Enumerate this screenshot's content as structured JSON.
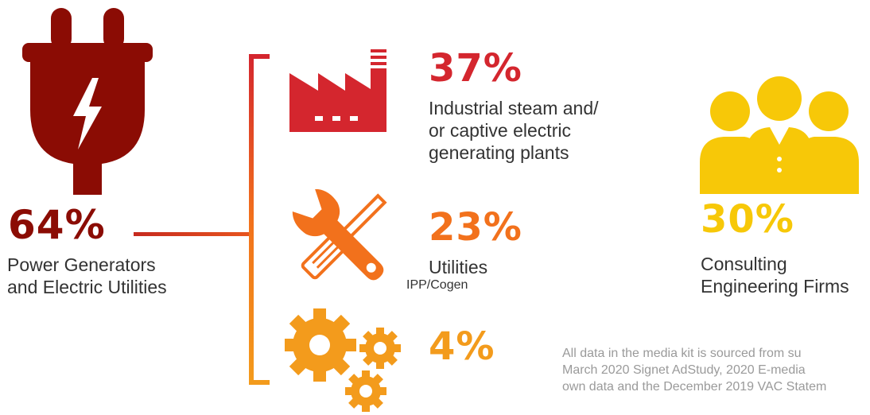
{
  "power": {
    "icon": "power-plug-icon",
    "value": "64%",
    "label_line1": "Power Generators",
    "label_line2": "and Electric Utilities",
    "color": "#8b0c04"
  },
  "segments": [
    {
      "icon": "factory-icon",
      "value": "37%",
      "label_line1": "Industrial steam and/",
      "label_line2": "or captive electric",
      "label_line3": "generating plants",
      "color": "#d4262e"
    },
    {
      "icon": "wrench-screwdriver-icon",
      "value": "23%",
      "label_line1": "Utilities",
      "sublabel": "IPP/Cogen",
      "color": "#f2711c"
    },
    {
      "icon": "gears-icon",
      "value": "4%",
      "color": "#f39b1c"
    }
  ],
  "consulting": {
    "icon": "people-group-icon",
    "value": "30%",
    "label_line1": "Consulting",
    "label_line2": "Engineering Firms",
    "color": "#f7c808"
  },
  "footnote": {
    "line1": "All data in the media kit is sourced from su",
    "line2": "March 2020 Signet AdStudy, 2020 E-media",
    "line3": "own data and the December 2019 VAC Statem"
  }
}
